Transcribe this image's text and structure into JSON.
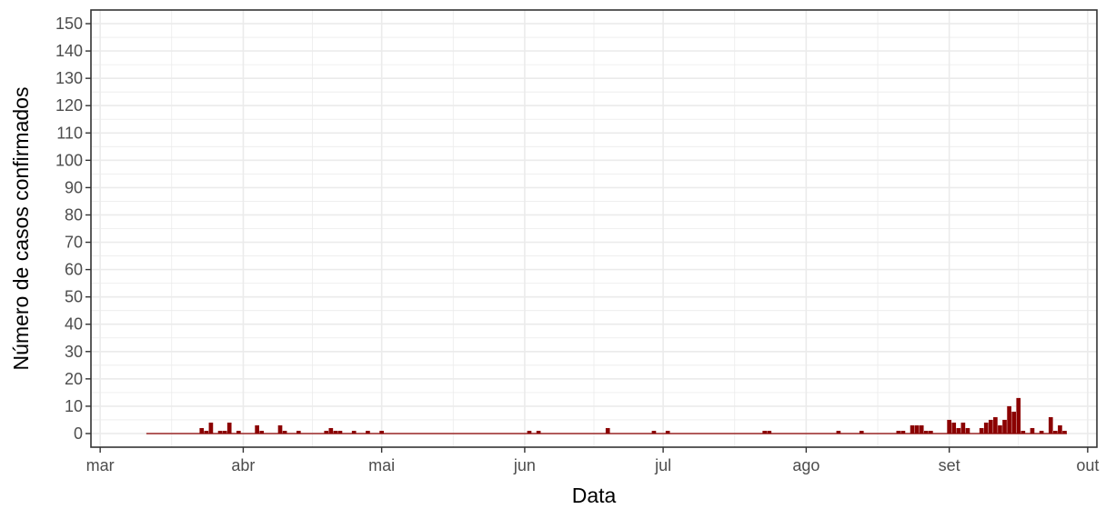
{
  "chart_data": {
    "type": "bar",
    "title": "",
    "xlabel": "Data",
    "ylabel": "Número de casos confirmados",
    "x_ticks": [
      {
        "label": "mar",
        "date": "2020-03-01"
      },
      {
        "label": "abr",
        "date": "2020-04-01"
      },
      {
        "label": "mai",
        "date": "2020-05-01"
      },
      {
        "label": "jun",
        "date": "2020-06-01"
      },
      {
        "label": "jul",
        "date": "2020-07-01"
      },
      {
        "label": "ago",
        "date": "2020-08-01"
      },
      {
        "label": "set",
        "date": "2020-09-01"
      },
      {
        "label": "out",
        "date": "2020-10-01"
      }
    ],
    "y_ticks": [
      "0",
      "10",
      "20",
      "30",
      "40",
      "50",
      "60",
      "70",
      "80",
      "90",
      "100",
      "110",
      "120",
      "130",
      "140",
      "150"
    ],
    "xlim": [
      "2020-02-28",
      "2020-10-03"
    ],
    "ylim": [
      -5,
      155
    ],
    "grid": true,
    "colors": {
      "bar": "#8B0000",
      "grid": "#ebebeb",
      "panel_border": "#333333"
    },
    "series": [
      {
        "x": [
          "2020-03-23",
          "2020-03-24",
          "2020-03-25",
          "2020-03-27",
          "2020-03-28",
          "2020-03-29",
          "2020-03-31",
          "2020-04-04",
          "2020-04-05",
          "2020-04-09",
          "2020-04-10",
          "2020-04-13",
          "2020-04-19",
          "2020-04-20",
          "2020-04-21",
          "2020-04-22",
          "2020-04-25",
          "2020-04-28",
          "2020-05-01",
          "2020-06-19",
          "2020-06-02",
          "2020-06-04",
          "2020-06-29",
          "2020-07-02",
          "2020-07-23",
          "2020-07-24",
          "2020-08-08",
          "2020-08-13",
          "2020-08-21",
          "2020-08-22",
          "2020-08-24",
          "2020-08-25",
          "2020-08-26",
          "2020-08-27",
          "2020-08-28",
          "2020-09-01",
          "2020-09-02",
          "2020-09-03",
          "2020-09-04",
          "2020-09-05",
          "2020-09-08",
          "2020-09-09",
          "2020-09-10",
          "2020-09-11",
          "2020-09-12",
          "2020-09-13",
          "2020-09-14",
          "2020-09-15",
          "2020-09-16",
          "2020-09-17",
          "2020-09-19",
          "2020-09-21",
          "2020-09-23",
          "2020-09-24",
          "2020-09-25",
          "2020-09-26"
        ],
        "values": [
          2,
          1,
          4,
          1,
          1,
          4,
          1,
          3,
          1,
          3,
          1,
          1,
          1,
          2,
          1,
          1,
          1,
          1,
          1,
          2,
          1,
          1,
          1,
          1,
          1,
          1,
          1,
          1,
          1,
          1,
          3,
          3,
          3,
          1,
          1,
          5,
          4,
          2,
          4,
          2,
          2,
          4,
          5,
          6,
          3,
          5,
          10,
          8,
          13,
          1,
          2,
          1,
          6,
          1,
          3,
          1
        ]
      }
    ]
  }
}
